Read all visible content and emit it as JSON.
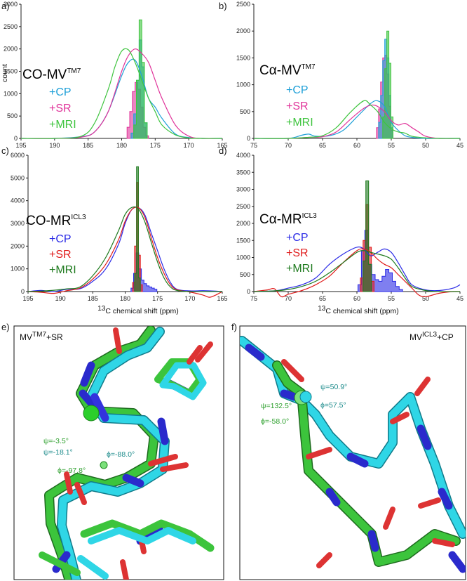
{
  "chart_data": [
    {
      "id": "a",
      "panel": "a)",
      "type": "line",
      "label_main": "CO-MV",
      "label_sup": "TM7",
      "xlim": [
        195,
        165
      ],
      "ylim": [
        0,
        3000
      ],
      "xticks": [
        195,
        190,
        185,
        180,
        175,
        170,
        165
      ],
      "yticks": [
        0,
        500,
        1000,
        1500,
        2000,
        2500,
        3000
      ],
      "ylabel": "count",
      "legend": [
        {
          "text": "+CP",
          "color": "#1fa0d8"
        },
        {
          "text": "+SR",
          "color": "#e0349a"
        },
        {
          "text": "+MRI",
          "color": "#3ec43e"
        }
      ],
      "series": [
        {
          "name": "+CP",
          "color": "#1fa0d8",
          "kind": "curve",
          "x": [
            195,
            190,
            186,
            184,
            182,
            180,
            179,
            178,
            177,
            176,
            175,
            174,
            172,
            170,
            168,
            165
          ],
          "y": [
            0,
            0,
            40,
            150,
            600,
            1400,
            1700,
            1750,
            1400,
            900,
            700,
            450,
            100,
            20,
            0,
            0
          ]
        },
        {
          "name": "+SR",
          "color": "#e0349a",
          "kind": "curve",
          "x": [
            195,
            190,
            186,
            184,
            182,
            180,
            179,
            178,
            177,
            176,
            175,
            174,
            172,
            170,
            168,
            165
          ],
          "y": [
            0,
            0,
            30,
            150,
            600,
            1500,
            1850,
            2000,
            1900,
            1700,
            1300,
            900,
            300,
            50,
            0,
            0
          ]
        },
        {
          "name": "+MRI",
          "color": "#3ec43e",
          "kind": "curve",
          "x": [
            195,
            190,
            186,
            184,
            182,
            181,
            180,
            179,
            178,
            177,
            176,
            175,
            174,
            172,
            170,
            168,
            165
          ],
          "y": [
            0,
            0,
            50,
            350,
            1100,
            1600,
            1950,
            1980,
            1700,
            1300,
            900,
            600,
            300,
            80,
            10,
            0,
            0
          ]
        },
        {
          "name": "+SR",
          "color": "#e0349a",
          "kind": "hist",
          "x": [
            179.0,
            178.6,
            178.2,
            177.8,
            177.4,
            177.0,
            176.6,
            176.2
          ],
          "y": [
            250,
            600,
            1050,
            1250,
            1100,
            700,
            250,
            60
          ]
        },
        {
          "name": "+CP",
          "color": "#1fa0d8",
          "kind": "hist",
          "x": [
            178.4,
            178.0,
            177.6,
            177.2,
            176.8,
            176.4
          ],
          "y": [
            120,
            550,
            1300,
            2200,
            1600,
            350
          ]
        },
        {
          "name": "+MRI",
          "color": "#3ec43e",
          "kind": "hist",
          "x": [
            178.0,
            177.6,
            177.2,
            176.8,
            176.4
          ],
          "y": [
            300,
            1300,
            2650,
            1700,
            350
          ]
        }
      ]
    },
    {
      "id": "b",
      "panel": "b)",
      "type": "line",
      "label_main": "Cα-MV",
      "label_sup": "TM7",
      "xlim": [
        75,
        45
      ],
      "ylim": [
        0,
        2500
      ],
      "xticks": [
        75,
        70,
        65,
        60,
        55,
        50,
        45
      ],
      "yticks": [
        0,
        500,
        1000,
        1500,
        2000,
        2500
      ],
      "legend": [
        {
          "text": "+CP",
          "color": "#1fa0d8"
        },
        {
          "text": "+SR",
          "color": "#e0349a"
        },
        {
          "text": "+MRI",
          "color": "#3ec43e"
        }
      ],
      "series": [
        {
          "name": "+CP",
          "color": "#1fa0d8",
          "kind": "curve",
          "x": [
            75,
            70,
            68,
            67,
            66,
            64,
            62,
            60,
            58,
            57,
            56,
            55,
            54,
            53,
            52,
            50,
            48,
            45
          ],
          "y": [
            0,
            0,
            60,
            80,
            40,
            50,
            150,
            400,
            650,
            700,
            600,
            300,
            150,
            50,
            20,
            0,
            0,
            0
          ]
        },
        {
          "name": "+SR",
          "color": "#e0349a",
          "kind": "curve",
          "x": [
            75,
            70,
            67,
            65,
            63,
            61,
            59,
            57.5,
            56,
            55,
            54,
            53,
            52,
            51,
            50,
            48,
            45
          ],
          "y": [
            0,
            0,
            20,
            30,
            120,
            350,
            560,
            620,
            500,
            330,
            250,
            280,
            200,
            120,
            40,
            0,
            0
          ]
        },
        {
          "name": "+MRI",
          "color": "#3ec43e",
          "kind": "curve",
          "x": [
            75,
            70,
            67,
            65,
            63,
            61,
            59,
            58,
            57,
            56,
            55,
            54,
            53,
            52,
            50,
            48,
            45
          ],
          "y": [
            0,
            0,
            20,
            50,
            200,
            480,
            700,
            620,
            500,
            300,
            180,
            120,
            100,
            40,
            10,
            0,
            0
          ]
        },
        {
          "name": "+SR",
          "color": "#e0349a",
          "kind": "hist",
          "x": [
            57.0,
            56.7,
            56.4,
            56.1,
            55.8,
            55.5,
            55.2,
            54.9
          ],
          "y": [
            200,
            550,
            1050,
            1500,
            1550,
            1200,
            600,
            150
          ]
        },
        {
          "name": "+CP",
          "color": "#1fa0d8",
          "kind": "hist",
          "x": [
            56.7,
            56.4,
            56.1,
            55.8,
            55.5,
            55.2,
            54.9
          ],
          "y": [
            300,
            800,
            1450,
            1850,
            1500,
            800,
            200
          ]
        },
        {
          "name": "+MRI",
          "color": "#3ec43e",
          "kind": "hist",
          "x": [
            56.1,
            55.8,
            55.5,
            55.2,
            54.9
          ],
          "y": [
            400,
            1300,
            2000,
            1400,
            400
          ]
        }
      ]
    },
    {
      "id": "c",
      "panel": "c)",
      "type": "line",
      "label_main": "CO-MR",
      "label_sup": "ICL3",
      "xlim": [
        195,
        165
      ],
      "ylim": [
        0,
        6000
      ],
      "xticks": [
        195,
        190,
        185,
        180,
        175,
        170,
        165
      ],
      "yticks": [
        0,
        1000,
        2000,
        3000,
        4000,
        5000,
        6000
      ],
      "xlabel_main": "C chemical shift (ppm)",
      "xlabel_sup": "13",
      "legend": [
        {
          "text": "+CP",
          "color": "#2a2ae6"
        },
        {
          "text": "+SR",
          "color": "#e01c1c"
        },
        {
          "text": "+MRI",
          "color": "#1e7a1e"
        }
      ],
      "series": [
        {
          "name": "+CP",
          "color": "#2a2ae6",
          "kind": "curve",
          "x": [
            195,
            193,
            191,
            189,
            187,
            185,
            183,
            181,
            180,
            179,
            178,
            177,
            176,
            175,
            174,
            173,
            172,
            170,
            168,
            166,
            165
          ],
          "y": [
            0,
            50,
            0,
            100,
            120,
            450,
            1000,
            2100,
            3000,
            3600,
            3700,
            3400,
            2600,
            1800,
            1000,
            400,
            100,
            30,
            40,
            20,
            0
          ]
        },
        {
          "name": "+SR",
          "color": "#e01c1c",
          "kind": "curve",
          "x": [
            195,
            193,
            191,
            189,
            187,
            185,
            183,
            181,
            180,
            179,
            178,
            177,
            176,
            175,
            174,
            173,
            172,
            170,
            168,
            167,
            166,
            165
          ],
          "y": [
            0,
            -30,
            -80,
            40,
            150,
            550,
            1200,
            2300,
            3100,
            3600,
            3700,
            3300,
            2400,
            1500,
            800,
            300,
            80,
            -20,
            -150,
            -250,
            -150,
            0
          ]
        },
        {
          "name": "+MRI",
          "color": "#1e7a1e",
          "kind": "curve",
          "x": [
            195,
            193,
            191,
            189,
            187,
            185,
            183,
            181,
            180,
            179,
            178,
            177,
            176,
            175,
            174,
            173,
            172,
            170,
            168,
            166,
            165
          ],
          "y": [
            0,
            20,
            60,
            120,
            200,
            700,
            1500,
            2700,
            3400,
            3700,
            3650,
            3100,
            2200,
            1300,
            600,
            200,
            50,
            0,
            0,
            0,
            0
          ]
        },
        {
          "name": "+CP",
          "color": "#2a2ae6",
          "kind": "hist",
          "x": [
            178.9,
            178.5,
            178.1,
            177.7,
            177.3,
            176.9,
            176.5,
            176.1,
            175.7,
            175.3
          ],
          "y": [
            150,
            800,
            1700,
            1000,
            500,
            350,
            250,
            200,
            150,
            100
          ]
        },
        {
          "name": "+SR",
          "color": "#e01c1c",
          "kind": "hist",
          "x": [
            178.7,
            178.4,
            178.1,
            177.8,
            177.5
          ],
          "y": [
            400,
            2000,
            4800,
            1600,
            300
          ]
        },
        {
          "name": "+MRI",
          "color": "#1e7a1e",
          "kind": "hist",
          "x": [
            178.4,
            178.1,
            177.8
          ],
          "y": [
            800,
            5500,
            600
          ]
        }
      ]
    },
    {
      "id": "d",
      "panel": "d)",
      "type": "line",
      "label_main": "Cα-MR",
      "label_sup": "ICL3",
      "xlim": [
        75,
        45
      ],
      "ylim": [
        0,
        4000
      ],
      "xticks": [
        75,
        70,
        65,
        60,
        55,
        50,
        45
      ],
      "yticks": [
        0,
        500,
        1000,
        1500,
        2000,
        2500,
        3000,
        3500,
        4000
      ],
      "xlabel_main": "C chemical shift (ppm)",
      "xlabel_sup": "13",
      "legend": [
        {
          "text": "+CP",
          "color": "#2a2ae6"
        },
        {
          "text": "+SR",
          "color": "#e01c1c"
        },
        {
          "text": "+MRI",
          "color": "#1e7a1e"
        }
      ],
      "series": [
        {
          "name": "+CP",
          "color": "#2a2ae6",
          "kind": "curve",
          "x": [
            75,
            72,
            70,
            68,
            66,
            64,
            62,
            60,
            59,
            58,
            57,
            56,
            55,
            54,
            53,
            52,
            50,
            48,
            46,
            45
          ],
          "y": [
            0,
            20,
            100,
            200,
            400,
            800,
            1100,
            1300,
            1250,
            1050,
            1150,
            1250,
            1150,
            850,
            500,
            200,
            50,
            30,
            100,
            200
          ]
        },
        {
          "name": "+SR",
          "color": "#e01c1c",
          "kind": "curve",
          "x": [
            75,
            73,
            72,
            71,
            70,
            68,
            66,
            64,
            62,
            60,
            59,
            58,
            57,
            56,
            55,
            54,
            53,
            52,
            51,
            50,
            48,
            46,
            45
          ],
          "y": [
            0,
            50,
            80,
            -150,
            -80,
            30,
            200,
            450,
            850,
            1200,
            1250,
            1150,
            950,
            800,
            700,
            500,
            300,
            100,
            -100,
            -150,
            -50,
            0,
            0
          ]
        },
        {
          "name": "+MRI",
          "color": "#1e7a1e",
          "kind": "curve",
          "x": [
            75,
            72,
            70,
            68,
            66,
            64,
            62,
            60,
            59,
            58,
            57,
            56,
            55,
            54,
            53,
            52,
            50,
            48,
            46,
            45
          ],
          "y": [
            0,
            20,
            60,
            150,
            300,
            550,
            850,
            1150,
            1200,
            1150,
            1100,
            1050,
            950,
            700,
            400,
            150,
            30,
            0,
            0,
            0
          ]
        },
        {
          "name": "+CP",
          "color": "#2a2ae6",
          "kind": "hist",
          "x": [
            59.6,
            59.1,
            58.6,
            58.1,
            57.6,
            57.1,
            56.6,
            56.1,
            55.6,
            55.1,
            54.6,
            54.1,
            53.6
          ],
          "y": [
            200,
            1200,
            1800,
            800,
            500,
            350,
            300,
            450,
            650,
            550,
            300,
            150,
            60
          ]
        },
        {
          "name": "+SR",
          "color": "#e01c1c",
          "kind": "hist",
          "x": [
            59.3,
            58.9,
            58.5,
            58.1,
            57.7
          ],
          "y": [
            400,
            1500,
            2550,
            1300,
            300
          ]
        },
        {
          "name": "+MRI",
          "color": "#1e7a1e",
          "kind": "hist",
          "x": [
            58.9,
            58.5,
            58.1
          ],
          "y": [
            900,
            3250,
            800
          ]
        }
      ]
    }
  ],
  "structures": [
    {
      "panel": "e)",
      "title_main": "MV",
      "title_sup": "TM7",
      "title_suffix": "+SR",
      "annotations": [
        {
          "text": "ψ=-3.5°",
          "color": "#2ea02e"
        },
        {
          "text": "ψ=-18.1°",
          "color": "#1a8a8a"
        },
        {
          "text": "ϕ=-88.0°",
          "color": "#1a8a8a"
        },
        {
          "text": "ϕ=-97.8°",
          "color": "#2ea02e"
        }
      ]
    },
    {
      "panel": "f)",
      "title_main": "MV",
      "title_sup": "ICL3",
      "title_suffix": "+CP",
      "annotations": [
        {
          "text": "ψ=50.9°",
          "color": "#1a8a8a"
        },
        {
          "text": "ψ=132.5°",
          "color": "#2ea02e"
        },
        {
          "text": "ϕ=57.5°",
          "color": "#1a8a8a"
        },
        {
          "text": "ϕ=-58.0°",
          "color": "#2ea02e"
        }
      ]
    }
  ]
}
